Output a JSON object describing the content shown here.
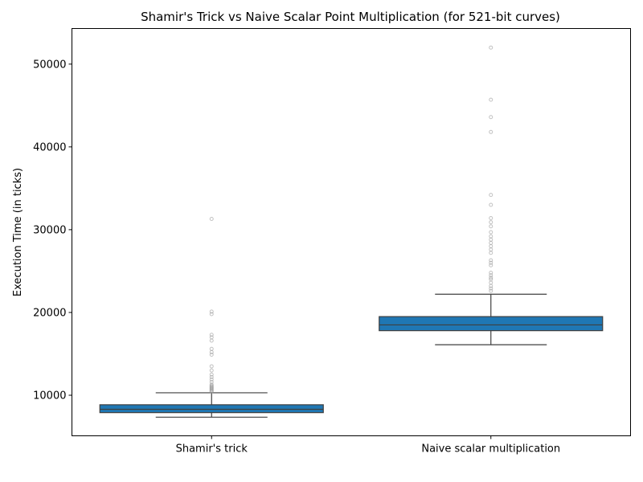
{
  "chart_data": {
    "type": "box",
    "title": "Shamir's Trick vs Naive Scalar Point Multiplication (for 521-bit curves)",
    "xlabel": "",
    "ylabel": "Execution Time (in ticks)",
    "ylim": [
      5100,
      54300
    ],
    "yticks": [
      10000,
      20000,
      30000,
      40000,
      50000
    ],
    "categories": [
      "Shamir's trick",
      "Naive scalar multiplication"
    ],
    "grid": false,
    "legend": "none",
    "box_color": "#1f77b4",
    "series": [
      {
        "category": "Shamir's trick",
        "whisker_low": 7350,
        "q1": 7900,
        "median": 8300,
        "q3": 8850,
        "whisker_high": 10300,
        "outliers": [
          10450,
          10550,
          10650,
          10750,
          10850,
          10950,
          11050,
          11150,
          11300,
          11600,
          11900,
          12200,
          12500,
          13000,
          13500,
          14900,
          15200,
          15600,
          16600,
          17000,
          17300,
          19800,
          20100,
          31300
        ]
      },
      {
        "category": "Naive scalar multiplication",
        "whisker_low": 16100,
        "q1": 17800,
        "median": 18500,
        "q3": 19500,
        "whisker_high": 22200,
        "outliers": [
          22600,
          22900,
          23200,
          23600,
          24000,
          24200,
          24500,
          24800,
          25700,
          26000,
          26300,
          27200,
          27600,
          28000,
          28400,
          28800,
          29200,
          29700,
          30400,
          30900,
          31400,
          33000,
          34200,
          41800,
          43600,
          45700,
          52000
        ]
      }
    ]
  }
}
